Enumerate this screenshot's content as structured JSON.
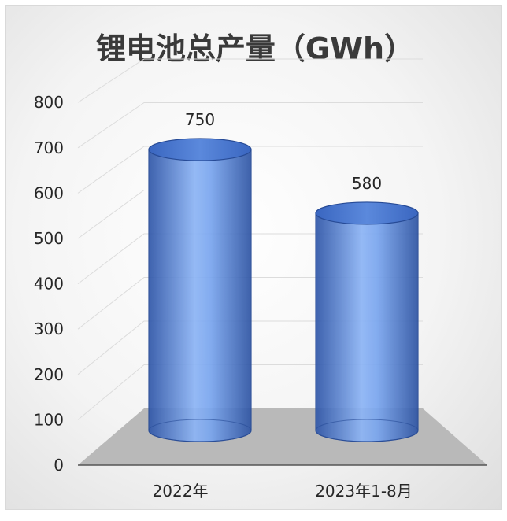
{
  "chart_data": {
    "type": "bar",
    "style": "3d-cylinder",
    "title": "锂电池总产量（GWh）",
    "categories": [
      "2022年",
      "2023年1-8月"
    ],
    "values": [
      750,
      580
    ],
    "data_labels": [
      "750",
      "580"
    ],
    "y_ticks": [
      "0",
      "100",
      "200",
      "300",
      "400",
      "500",
      "600",
      "700",
      "800"
    ],
    "ylim": [
      0,
      800
    ],
    "grid": true,
    "legend": "none",
    "colors": {
      "bar_dark": "#2f56a8",
      "bar_light": "#8cb4f5",
      "bar_top": "#4a78d0",
      "floor": "#b9b9b9",
      "grid": "#dcdcdc",
      "axis": "#555555"
    }
  }
}
